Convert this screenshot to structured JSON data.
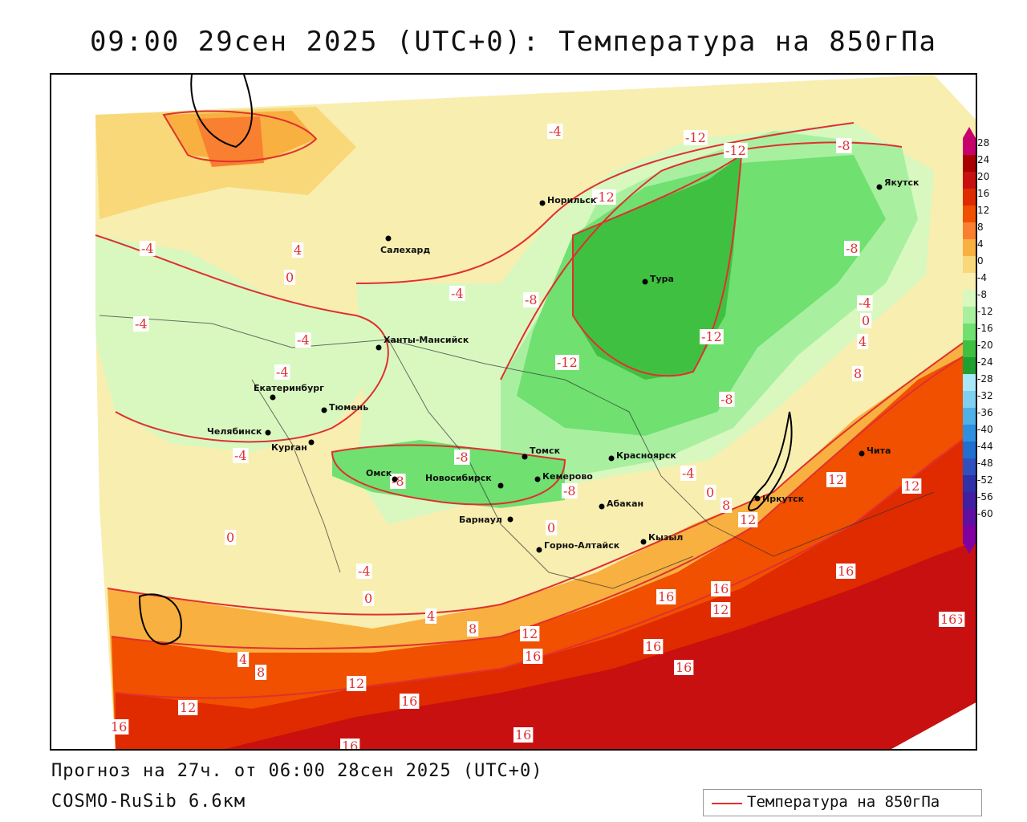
{
  "title": "09:00 29сен 2025 (UTC+0): Температура на 850гПа",
  "footer": {
    "forecast": "Прогноз на 27ч. от 06:00 28сен 2025 (UTC+0)",
    "model": "COSMO-RuSib 6.6км"
  },
  "legend": {
    "label": "Температура на 850гПа",
    "line_color": "#e03030"
  },
  "colorbar": {
    "ticks": [
      "28",
      "24",
      "20",
      "16",
      "12",
      "8",
      "4",
      "0",
      "-4",
      "-8",
      "-12",
      "-16",
      "-20",
      "-24",
      "-28",
      "-32",
      "-36",
      "-40",
      "-44",
      "-48",
      "-52",
      "-56",
      "-60"
    ],
    "colors": [
      "#c8006e",
      "#a80000",
      "#c81010",
      "#e02a00",
      "#f05000",
      "#f88030",
      "#f8b040",
      "#f8d878",
      "#f8eeb0",
      "#d8f8c0",
      "#a8f0a0",
      "#70e070",
      "#40c040",
      "#20a030",
      "#a8e8f8",
      "#80d0f0",
      "#50b0e8",
      "#3090e0",
      "#2070d0",
      "#3050c0",
      "#3030a8",
      "#4020a0",
      "#6010a0",
      "#8000a0"
    ]
  },
  "cities": [
    {
      "name": "Якутск"
    },
    {
      "name": "Норильск"
    },
    {
      "name": "Салехард"
    },
    {
      "name": "Тура"
    },
    {
      "name": "Ханты-Мансийск"
    },
    {
      "name": "Екатеринбург"
    },
    {
      "name": "Тюмень"
    },
    {
      "name": "Челябинск"
    },
    {
      "name": "Курган"
    },
    {
      "name": "Омск"
    },
    {
      "name": "Новосибирск"
    },
    {
      "name": "Томск"
    },
    {
      "name": "Кемерово"
    },
    {
      "name": "Красноярск"
    },
    {
      "name": "Барнаул"
    },
    {
      "name": "Абакан"
    },
    {
      "name": "Горно-Алтайск"
    },
    {
      "name": "Кызыл"
    },
    {
      "name": "Иркутск"
    },
    {
      "name": "Чита"
    }
  ],
  "contour_labels": [
    "-4",
    "-12",
    "-12",
    "-8",
    "-12",
    "-4",
    "4",
    "0",
    "-4",
    "-8",
    "-4",
    "-4",
    "-4",
    "-8",
    "-12",
    "-12",
    "-8",
    "-4",
    "0",
    "4",
    "8",
    "-8",
    "-4",
    "-8",
    "-8",
    "-4",
    "0",
    "12",
    "12",
    "0",
    "8",
    "12",
    "16",
    "16",
    "12",
    "16",
    "16",
    "16",
    "16",
    "12",
    "16",
    "16",
    "0",
    "-4",
    "0",
    "4",
    "8",
    "4",
    "8",
    "12",
    "12",
    "16",
    "16",
    "16",
    "16"
  ]
}
